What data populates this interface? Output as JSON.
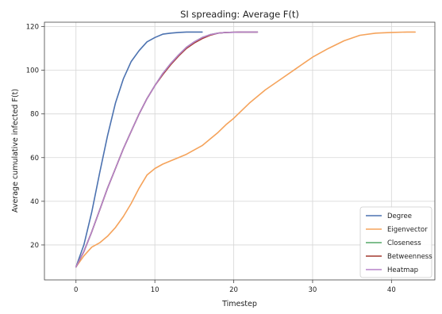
{
  "chart_data": {
    "type": "line",
    "title": "SI spreading: Average F(t)",
    "xlabel": "Timestep",
    "ylabel": "Average cumulative infected F(t)",
    "xlim": [
      -4,
      45.5
    ],
    "ylim": [
      4,
      122
    ],
    "xticks": [
      0,
      10,
      20,
      30,
      40
    ],
    "yticks": [
      20,
      40,
      60,
      80,
      100,
      120
    ],
    "grid": true,
    "legend_position": "lower-right",
    "series": [
      {
        "name": "Degree",
        "color": "#4c72b0",
        "x": [
          0,
          1,
          2,
          3,
          4,
          5,
          6,
          7,
          8,
          9,
          10,
          11,
          12,
          13,
          14,
          15,
          16
        ],
        "y": [
          10,
          20,
          35,
          53,
          70,
          85,
          96,
          104,
          109,
          113,
          115,
          116.5,
          117,
          117.3,
          117.5,
          117.5,
          117.5
        ]
      },
      {
        "name": "Eigenvector",
        "color": "#f5a35b",
        "x": [
          0,
          1,
          2,
          3,
          4,
          5,
          6,
          7,
          8,
          9,
          10,
          11,
          12,
          13,
          14,
          15,
          16,
          17,
          18,
          19,
          20,
          22,
          24,
          26,
          28,
          30,
          32,
          34,
          36,
          38,
          40,
          42,
          43
        ],
        "y": [
          10,
          15,
          19,
          21,
          24,
          28,
          33,
          39,
          46,
          52,
          55,
          57,
          58.5,
          60,
          61.5,
          63.5,
          65.5,
          68.5,
          71.5,
          75,
          78,
          85,
          91,
          96,
          101,
          106,
          110,
          113.5,
          116,
          117,
          117.3,
          117.5,
          117.5
        ]
      },
      {
        "name": "Closeness",
        "color": "#55a868",
        "x": [
          0,
          1,
          2,
          3,
          4,
          5,
          6,
          7,
          8,
          9,
          10,
          11,
          12,
          13,
          14,
          15,
          16,
          17,
          18,
          19,
          20,
          21,
          22,
          23
        ],
        "y": [
          10,
          17,
          26,
          36,
          46,
          55,
          64,
          72,
          80,
          87,
          93,
          98.5,
          103,
          107,
          110.5,
          113,
          115,
          116.3,
          117,
          117.3,
          117.4,
          117.5,
          117.5,
          117.5
        ]
      },
      {
        "name": "Betweenness",
        "color": "#a3392f",
        "x": [
          0,
          1,
          2,
          3,
          4,
          5,
          6,
          7,
          8,
          9,
          10,
          11,
          12,
          13,
          14,
          15,
          16,
          17,
          18,
          19,
          20,
          21,
          22,
          23
        ],
        "y": [
          10,
          17,
          26,
          36,
          46,
          55,
          64,
          72,
          80,
          87,
          93,
          98,
          102.5,
          106.5,
          110,
          112.5,
          114.5,
          116,
          117,
          117.3,
          117.4,
          117.5,
          117.5,
          117.5
        ]
      },
      {
        "name": "Heatmap",
        "color": "#b582c8",
        "x": [
          0,
          1,
          2,
          3,
          4,
          5,
          6,
          7,
          8,
          9,
          10,
          11,
          12,
          13,
          14,
          15,
          16,
          17,
          18,
          19,
          20,
          21,
          22,
          23
        ],
        "y": [
          10,
          17,
          26,
          36,
          46,
          55,
          64,
          72,
          80,
          87,
          93,
          98.5,
          103,
          107,
          110.5,
          113,
          115,
          116.3,
          117,
          117.3,
          117.4,
          117.5,
          117.5,
          117.5
        ]
      }
    ]
  }
}
